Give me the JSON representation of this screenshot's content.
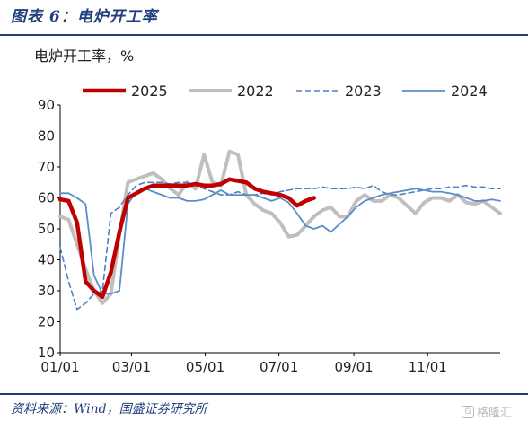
{
  "header": {
    "title": "图表 6：电炉开工率"
  },
  "footer": {
    "source": "资料来源：Wind，国盛证券研究所",
    "watermark": "格隆汇"
  },
  "colors": {
    "accent": "#1f3e7c",
    "s2025": "#c00000",
    "s2022": "#bfbfbf",
    "s2023": "#4f7fbf",
    "s2024": "#5b8ec7"
  },
  "chart_data": {
    "type": "line",
    "ylabel": "电炉开工率，%",
    "ylim": [
      10,
      90
    ],
    "yticks": [
      10,
      20,
      30,
      40,
      50,
      60,
      70,
      80,
      90
    ],
    "xlim": [
      "01-01",
      "12-31"
    ],
    "xticks": [
      "01/01",
      "03/01",
      "05/01",
      "07/01",
      "09/01",
      "11/01"
    ],
    "legend_position": "top",
    "series": [
      {
        "name": "2025",
        "style": "solid-thick",
        "x": [
          "01-01",
          "01-08",
          "01-15",
          "01-22",
          "01-29",
          "02-05",
          "02-12",
          "02-19",
          "02-26",
          "03-05",
          "03-12",
          "03-19",
          "03-26",
          "04-02",
          "04-09",
          "04-16",
          "04-23",
          "04-30",
          "05-07",
          "05-14",
          "05-21",
          "05-28",
          "06-04",
          "06-11",
          "06-18",
          "06-25",
          "07-02",
          "07-09",
          "07-16",
          "07-23",
          "07-30"
        ],
        "y": [
          59.5,
          59,
          52,
          33,
          30,
          28,
          36,
          49,
          60,
          61.5,
          63,
          64,
          64,
          64,
          64,
          64,
          64.5,
          64,
          64,
          64.5,
          66,
          65.5,
          65,
          63,
          62,
          61.5,
          61,
          60,
          57.5,
          59,
          60
        ]
      },
      {
        "name": "2022",
        "style": "solid-gray",
        "x": [
          "01-01",
          "01-08",
          "01-15",
          "01-22",
          "01-29",
          "02-05",
          "02-12",
          "02-19",
          "02-26",
          "03-05",
          "03-12",
          "03-19",
          "03-26",
          "04-02",
          "04-09",
          "04-16",
          "04-23",
          "04-30",
          "05-07",
          "05-14",
          "05-21",
          "05-28",
          "06-04",
          "06-11",
          "06-18",
          "06-25",
          "07-02",
          "07-09",
          "07-16",
          "07-23",
          "07-30",
          "08-06",
          "08-13",
          "08-20",
          "08-27",
          "09-03",
          "09-10",
          "09-17",
          "09-24",
          "10-01",
          "10-08",
          "10-15",
          "10-22",
          "10-29",
          "11-05",
          "11-12",
          "11-19",
          "11-26",
          "12-03",
          "12-10",
          "12-17",
          "12-24",
          "12-31"
        ],
        "y": [
          54,
          53,
          45,
          37,
          30,
          26,
          29,
          48,
          65,
          66,
          67,
          68,
          66,
          63,
          61,
          65,
          63,
          74,
          65,
          64,
          75,
          74,
          61,
          58,
          56,
          55,
          52,
          47.5,
          48,
          51,
          54,
          56,
          57,
          54,
          54,
          59,
          61,
          59,
          59,
          61,
          60,
          57.5,
          55,
          58.5,
          60,
          60,
          59,
          61,
          58.5,
          58,
          59,
          57,
          55
        ]
      },
      {
        "name": "2023",
        "style": "dashed",
        "x": [
          "01-01",
          "01-08",
          "01-15",
          "01-22",
          "01-29",
          "02-05",
          "02-12",
          "02-19",
          "02-26",
          "03-05",
          "03-12",
          "03-19",
          "03-26",
          "04-02",
          "04-09",
          "04-16",
          "04-23",
          "04-30",
          "05-07",
          "05-14",
          "05-21",
          "05-28",
          "06-04",
          "06-11",
          "06-18",
          "06-25",
          "07-02",
          "07-09",
          "07-16",
          "07-23",
          "07-30",
          "08-06",
          "08-13",
          "08-20",
          "08-27",
          "09-03",
          "09-10",
          "09-17",
          "09-24",
          "10-01",
          "10-08",
          "10-15",
          "10-22",
          "10-29",
          "11-05",
          "11-12",
          "11-19",
          "11-26",
          "12-03",
          "12-10",
          "12-17",
          "12-24",
          "12-31"
        ],
        "y": [
          44,
          33,
          24,
          26,
          29,
          30,
          55,
          57,
          61,
          64,
          65,
          65,
          65,
          64.5,
          65,
          65,
          64,
          63,
          62,
          61,
          61,
          62,
          61,
          61,
          61.5,
          61,
          62,
          62.5,
          63,
          63,
          63,
          63.5,
          63,
          63,
          63,
          63.5,
          63,
          64,
          62,
          61,
          61,
          61.5,
          62,
          62.5,
          63,
          63,
          63.5,
          63.5,
          64,
          63.5,
          63.5,
          63,
          63
        ]
      },
      {
        "name": "2024",
        "style": "solid-blue",
        "x": [
          "01-01",
          "01-08",
          "01-15",
          "01-22",
          "01-29",
          "02-05",
          "02-12",
          "02-19",
          "02-26",
          "03-05",
          "03-12",
          "03-19",
          "03-26",
          "04-02",
          "04-09",
          "04-16",
          "04-23",
          "04-30",
          "05-07",
          "05-14",
          "05-21",
          "05-28",
          "06-04",
          "06-11",
          "06-18",
          "06-25",
          "07-02",
          "07-09",
          "07-16",
          "07-23",
          "07-30",
          "08-06",
          "08-13",
          "08-20",
          "08-27",
          "09-03",
          "09-10",
          "09-17",
          "09-24",
          "10-01",
          "10-08",
          "10-15",
          "10-22",
          "10-29",
          "11-05",
          "11-12",
          "11-19",
          "11-26",
          "12-03",
          "12-10",
          "12-17",
          "12-24",
          "12-31"
        ],
        "y": [
          61.5,
          61.5,
          60,
          58,
          35,
          29,
          29,
          30,
          58,
          62,
          63,
          62,
          61,
          60,
          60,
          59,
          59,
          59.5,
          61,
          62.5,
          61,
          61,
          61,
          61,
          60,
          59,
          60,
          58.5,
          55,
          51,
          50,
          51,
          49,
          51.5,
          54,
          57,
          59,
          60,
          61,
          61.5,
          62,
          62.5,
          63,
          62.5,
          62,
          62,
          61.5,
          61,
          60,
          59,
          59,
          59.5,
          59
        ]
      }
    ]
  }
}
